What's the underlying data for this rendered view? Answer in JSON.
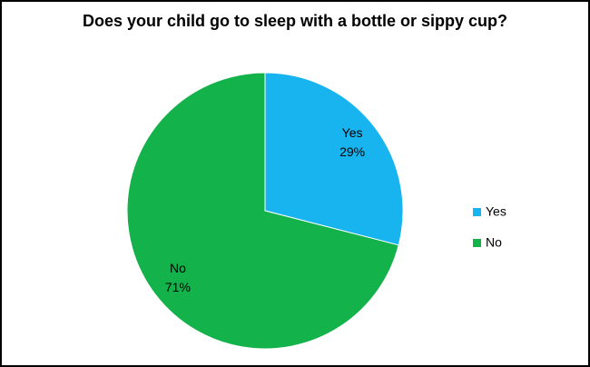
{
  "chart_data": {
    "type": "pie",
    "title": "Does your child go to sleep with a bottle or sippy cup?",
    "categories": [
      "Yes",
      "No"
    ],
    "values": [
      29,
      71
    ],
    "value_labels": [
      "29%",
      "71%"
    ],
    "colors": [
      "#17b4ef",
      "#13b24b"
    ],
    "legend": "right"
  }
}
